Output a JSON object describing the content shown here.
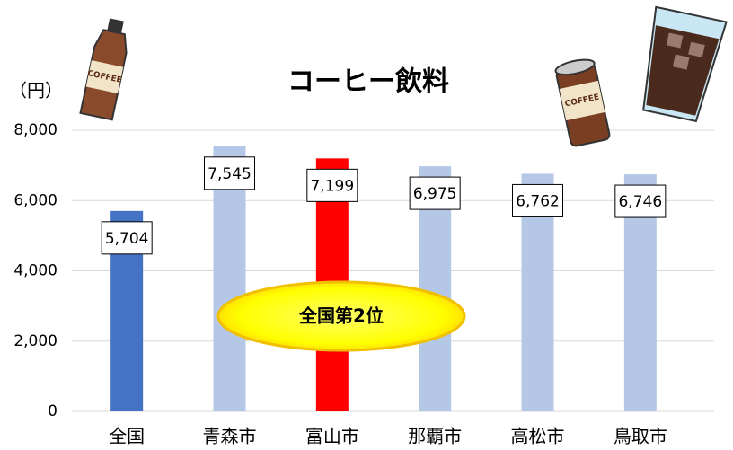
{
  "chart_data": {
    "type": "bar",
    "title": "コーヒー飲料",
    "y_label": "（円）",
    "categories": [
      "全国",
      "青森市",
      "富山市",
      "那覇市",
      "高松市",
      "鳥取市"
    ],
    "values": [
      5704,
      7545,
      7199,
      6975,
      6762,
      6746
    ],
    "value_labels": [
      "5,704",
      "7,545",
      "7,199",
      "6,975",
      "6,762",
      "6,746"
    ],
    "colors": [
      "#4472c4",
      "#b4c7e7",
      "#ff0000",
      "#b4c7e7",
      "#b4c7e7",
      "#b4c7e7"
    ],
    "ylim": [
      0,
      8000
    ],
    "yticks": [
      0,
      {
        "value": 2000,
        "label": "2,000"
      },
      {
        "value": 4000,
        "label": "4,000"
      },
      {
        "value": 6000,
        "label": "6,000"
      },
      {
        "value": 8000,
        "label": "8,000"
      }
    ],
    "grid": true,
    "annotation": "全国第2位"
  }
}
